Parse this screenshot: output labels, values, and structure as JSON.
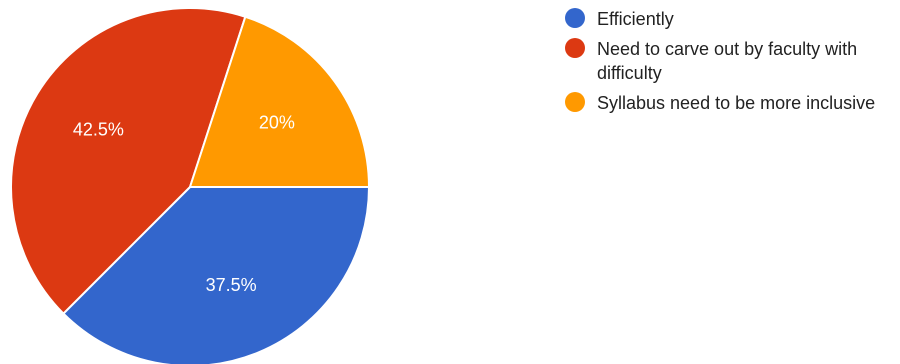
{
  "chart_data": {
    "type": "pie",
    "title": "",
    "legend_position": "right",
    "slices": [
      {
        "label": "Efficiently",
        "value": 37.5,
        "display": "37.5%",
        "color": "#3366cc"
      },
      {
        "label": "Need to carve out by faculty with difficulty",
        "value": 42.5,
        "display": "42.5%",
        "color": "#dc3912"
      },
      {
        "label": "Syllabus need to be more inclusive",
        "value": 20,
        "display": "20%",
        "color": "#ff9900"
      }
    ]
  }
}
